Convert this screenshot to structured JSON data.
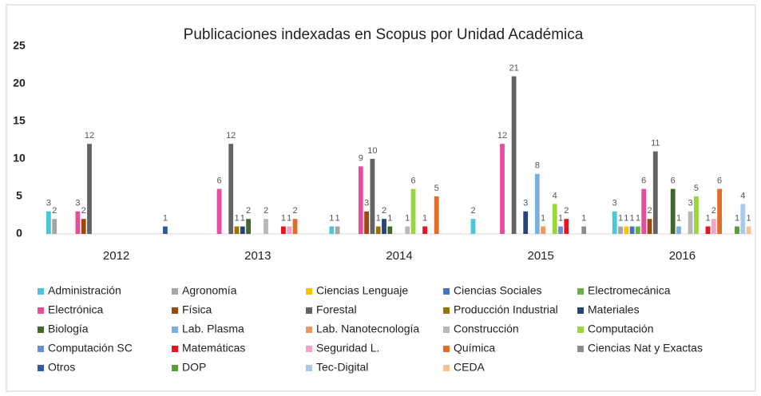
{
  "chart_data": {
    "type": "bar",
    "title": "Publicaciones indexadas en Scopus por Unidad Académica",
    "categories": [
      "2012",
      "2013",
      "2014",
      "2015",
      "2016"
    ],
    "ylim": [
      0,
      25
    ],
    "yticks": [
      0,
      5,
      10,
      15,
      20,
      25
    ],
    "grid": false,
    "legend": "bottom",
    "series": [
      {
        "name": "Administración",
        "color": "#4bc6d6",
        "values": [
          3,
          null,
          1,
          2,
          3
        ]
      },
      {
        "name": "Agronomía",
        "color": "#a5a5a5",
        "values": [
          2,
          null,
          1,
          null,
          1
        ]
      },
      {
        "name": "Ciencias Lenguaje",
        "color": "#ffc000",
        "values": [
          null,
          null,
          null,
          null,
          1
        ]
      },
      {
        "name": "Ciencias Sociales",
        "color": "#4472c4",
        "values": [
          null,
          null,
          null,
          null,
          1
        ]
      },
      {
        "name": "Electromecánica",
        "color": "#70ad47",
        "values": [
          null,
          null,
          null,
          null,
          1
        ]
      },
      {
        "name": "Electrónica",
        "color": "#e84c9c",
        "values": [
          3,
          6,
          9,
          12,
          6
        ]
      },
      {
        "name": "Física",
        "color": "#9e480e",
        "values": [
          2,
          null,
          3,
          null,
          2
        ]
      },
      {
        "name": "Forestal",
        "color": "#636363",
        "values": [
          12,
          12,
          10,
          21,
          11
        ]
      },
      {
        "name": "Producción Industrial",
        "color": "#997300",
        "values": [
          null,
          1,
          1,
          null,
          null
        ]
      },
      {
        "name": "Materiales",
        "color": "#264478",
        "values": [
          null,
          1,
          2,
          3,
          null
        ]
      },
      {
        "name": "Biología",
        "color": "#43682b",
        "values": [
          null,
          2,
          1,
          null,
          6
        ]
      },
      {
        "name": "Lab. Plasma",
        "color": "#7cafdd",
        "values": [
          null,
          null,
          null,
          8,
          1
        ]
      },
      {
        "name": "Lab. Nanotecnología",
        "color": "#f1975a",
        "values": [
          null,
          null,
          null,
          1,
          null
        ]
      },
      {
        "name": "Construcción",
        "color": "#b7b7b7",
        "values": [
          null,
          2,
          1,
          null,
          3
        ]
      },
      {
        "name": "Computación",
        "color": "#9bd63b",
        "values": [
          null,
          null,
          6,
          4,
          5
        ]
      },
      {
        "name": "Computación SC",
        "color": "#698ed0",
        "values": [
          null,
          null,
          null,
          1,
          null
        ]
      },
      {
        "name": "Matemáticas",
        "color": "#e8141e",
        "values": [
          null,
          1,
          1,
          2,
          1
        ]
      },
      {
        "name": "Seguridad L.",
        "color": "#f4a3c9",
        "values": [
          null,
          1,
          null,
          null,
          2
        ]
      },
      {
        "name": "Química",
        "color": "#e36c2a",
        "values": [
          null,
          2,
          5,
          null,
          6
        ]
      },
      {
        "name": "Ciencias Nat y Exactas",
        "color": "#8c8c8c",
        "values": [
          null,
          null,
          null,
          1,
          null
        ]
      },
      {
        "name": "Otros",
        "color": "#335aa1",
        "values": [
          1,
          null,
          null,
          null,
          null
        ]
      },
      {
        "name": "DOP",
        "color": "#5a9b3c",
        "values": [
          null,
          null,
          null,
          null,
          1
        ]
      },
      {
        "name": "Tec-Digital",
        "color": "#a9cbe8",
        "values": [
          null,
          null,
          null,
          null,
          4
        ]
      },
      {
        "name": "CEDA",
        "color": "#f9c18e",
        "values": [
          null,
          null,
          null,
          null,
          1
        ]
      }
    ]
  }
}
